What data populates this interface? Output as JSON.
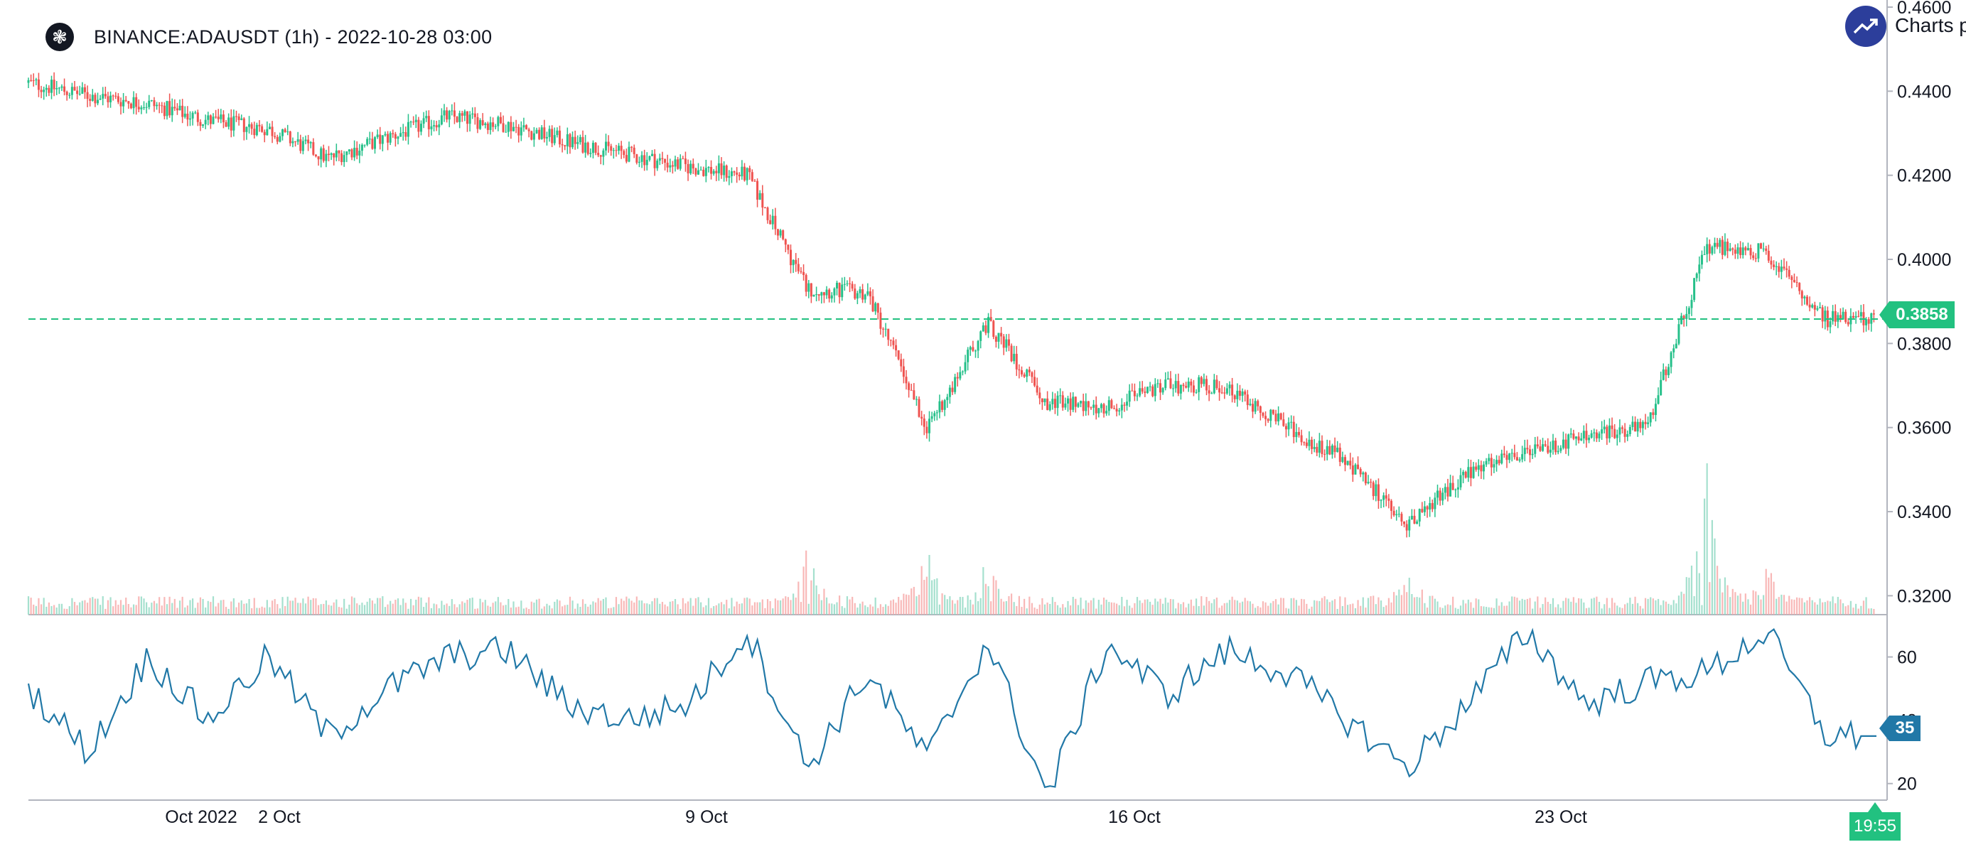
{
  "header": {
    "title": "BINANCE:ADAUSDT (1h) - 2022-10-28 03:00",
    "logo_icon": "cardano-logo-icon",
    "brand_text": "Charts p",
    "brand_icon": "trend-up-icon"
  },
  "colors": {
    "up": "#22ab94",
    "down": "#f23645",
    "up_candle": "#26c08a",
    "down_candle": "#ef5350",
    "price_line": "#22c180",
    "rsi_line": "#2178a7",
    "axis_text": "#131722"
  },
  "price_axis": {
    "ticks": [
      "0.4600",
      "0.4400",
      "0.4200",
      "0.4000",
      "0.3800",
      "0.3600",
      "0.3400",
      "0.3200"
    ]
  },
  "rsi_axis": {
    "ticks": [
      "60",
      "40",
      "20"
    ]
  },
  "x_axis": {
    "ticks": [
      "Oct 2022",
      "2 Oct",
      "9 Oct",
      "16 Oct",
      "23 Oct"
    ]
  },
  "last_price_label": "0.3858",
  "rsi_last_label": "35",
  "time_label": "19:55",
  "chart_data": {
    "type": "candlestick",
    "symbol": "BINANCE:ADAUSDT",
    "interval": "1h",
    "ylim": [
      0.3155,
      0.46
    ],
    "last_price": 0.3858,
    "x_range": [
      "2022-09-28",
      "2022-10-28"
    ],
    "price_path": [
      {
        "t": "2022-09-28",
        "price": 0.442
      },
      {
        "t": "2022-09-29",
        "price": 0.439
      },
      {
        "t": "2022-09-30",
        "price": 0.437
      },
      {
        "t": "2022-10-01",
        "price": 0.433
      },
      {
        "t": "2022-10-02",
        "price": 0.431
      },
      {
        "t": "2022-10-03",
        "price": 0.424
      },
      {
        "t": "2022-10-04",
        "price": 0.429
      },
      {
        "t": "2022-10-05",
        "price": 0.434
      },
      {
        "t": "2022-10-06",
        "price": 0.432
      },
      {
        "t": "2022-10-07",
        "price": 0.428
      },
      {
        "t": "2022-10-08",
        "price": 0.425
      },
      {
        "t": "2022-10-09",
        "price": 0.422
      },
      {
        "t": "2022-10-10",
        "price": 0.42
      },
      {
        "t": "2022-10-11",
        "price": 0.393
      },
      {
        "t": "2022-10-12",
        "price": 0.392
      },
      {
        "t": "2022-10-13",
        "price": 0.36
      },
      {
        "t": "2022-10-14",
        "price": 0.385
      },
      {
        "t": "2022-10-15",
        "price": 0.366
      },
      {
        "t": "2022-10-16",
        "price": 0.365
      },
      {
        "t": "2022-10-17",
        "price": 0.37
      },
      {
        "t": "2022-10-18",
        "price": 0.37
      },
      {
        "t": "2022-10-19",
        "price": 0.36
      },
      {
        "t": "2022-10-20",
        "price": 0.352
      },
      {
        "t": "2022-10-21",
        "price": 0.337
      },
      {
        "t": "2022-10-22",
        "price": 0.349
      },
      {
        "t": "2022-10-23",
        "price": 0.354
      },
      {
        "t": "2022-10-24",
        "price": 0.358
      },
      {
        "t": "2022-10-25",
        "price": 0.36
      },
      {
        "t": "2022-10-26",
        "price": 0.403
      },
      {
        "t": "2022-10-27",
        "price": 0.402
      },
      {
        "t": "2022-10-28",
        "price": 0.3858
      }
    ],
    "volume_spikes": [
      {
        "t": "2022-10-11",
        "rel": 0.45
      },
      {
        "t": "2022-10-13",
        "rel": 0.48
      },
      {
        "t": "2022-10-14",
        "rel": 0.35
      },
      {
        "t": "2022-10-21",
        "rel": 0.22
      },
      {
        "t": "2022-10-26",
        "rel": 1.0
      },
      {
        "t": "2022-10-27",
        "rel": 0.35
      }
    ],
    "rsi": {
      "ylim": [
        15,
        70
      ],
      "last": 35,
      "points": [
        {
          "t": "2022-09-28",
          "v": 50
        },
        {
          "t": "2022-09-29",
          "v": 30
        },
        {
          "t": "2022-09-30",
          "v": 60
        },
        {
          "t": "2022-10-01",
          "v": 40
        },
        {
          "t": "2022-10-02",
          "v": 60
        },
        {
          "t": "2022-10-03",
          "v": 35
        },
        {
          "t": "2022-10-04",
          "v": 50
        },
        {
          "t": "2022-10-05",
          "v": 60
        },
        {
          "t": "2022-10-06",
          "v": 62
        },
        {
          "t": "2022-10-07",
          "v": 45
        },
        {
          "t": "2022-10-08",
          "v": 40
        },
        {
          "t": "2022-10-09",
          "v": 45
        },
        {
          "t": "2022-10-10",
          "v": 68
        },
        {
          "t": "2022-10-11",
          "v": 25
        },
        {
          "t": "2022-10-12",
          "v": 55
        },
        {
          "t": "2022-10-13",
          "v": 28
        },
        {
          "t": "2022-10-14",
          "v": 65
        },
        {
          "t": "2022-10-15",
          "v": 16
        },
        {
          "t": "2022-10-16",
          "v": 64
        },
        {
          "t": "2022-10-17",
          "v": 48
        },
        {
          "t": "2022-10-18",
          "v": 62
        },
        {
          "t": "2022-10-19",
          "v": 55
        },
        {
          "t": "2022-10-20",
          "v": 40
        },
        {
          "t": "2022-10-21",
          "v": 25
        },
        {
          "t": "2022-10-22",
          "v": 45
        },
        {
          "t": "2022-10-23",
          "v": 68
        },
        {
          "t": "2022-10-24",
          "v": 45
        },
        {
          "t": "2022-10-25",
          "v": 52
        },
        {
          "t": "2022-10-26",
          "v": 55
        },
        {
          "t": "2022-10-27",
          "v": 68
        },
        {
          "t": "2022-10-28",
          "v": 35
        }
      ]
    }
  }
}
